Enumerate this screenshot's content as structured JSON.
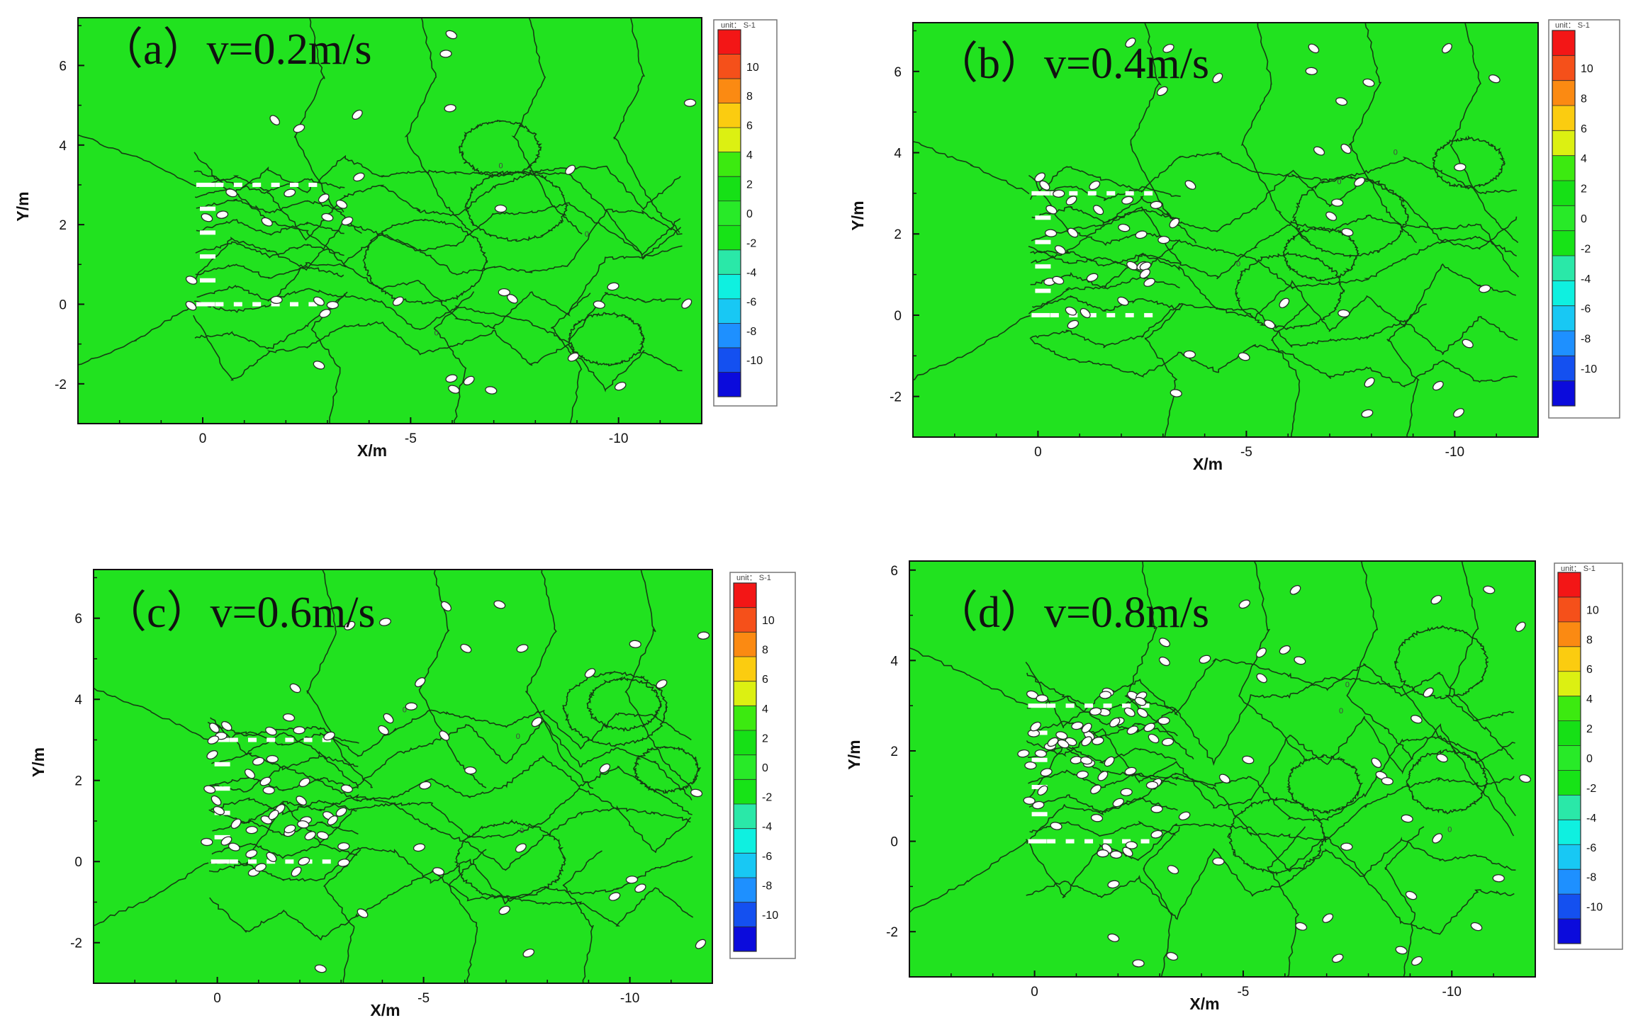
{
  "colors": {
    "field": "#21e21f",
    "contour": "#163d14",
    "marker_fill": "#ffffff",
    "marker_stroke": "#2a2a2a",
    "axis": "#111111",
    "colorbar": [
      "#0b0bdc",
      "#1450f0",
      "#1e90ff",
      "#18c8f4",
      "#0ff0e0",
      "#2ae8a8",
      "#17e317",
      "#28ea28",
      "#16e016",
      "#3cea10",
      "#dcf012",
      "#fbcc10",
      "#fb8a12",
      "#f5501a",
      "#f31616"
    ]
  },
  "chart_data": [
    {
      "id": "a",
      "type": "contour",
      "title": "（a）v=0.2m/s",
      "xlabel": "X/m",
      "ylabel": "Y/m",
      "xlim": [
        3,
        -12
      ],
      "ylim": [
        -3,
        7.2
      ],
      "xticks": [
        0,
        -5,
        -10
      ],
      "xtick_labels": [
        "0",
        "-5",
        "-10"
      ],
      "yticks": [
        -2,
        0,
        2,
        4,
        6
      ],
      "ytick_labels": [
        "-2",
        "0",
        "2",
        "4",
        "6"
      ],
      "colorbar": {
        "unit": "unit： S-1",
        "levels": [
          10,
          8,
          6,
          4,
          2,
          0,
          -2,
          -4,
          -6,
          -8,
          -10
        ],
        "labels": [
          "10",
          "8",
          "6",
          "4",
          "2",
          "0",
          "-2",
          "-4",
          "-6",
          "-8",
          "-10"
        ]
      },
      "contour_value": "0"
    },
    {
      "id": "b",
      "type": "contour",
      "title": "（b）v=0.4m/s",
      "xlabel": "X/m",
      "ylabel": "Y/m",
      "xlim": [
        3,
        -12
      ],
      "ylim": [
        -3,
        7.2
      ],
      "xticks": [
        0,
        -5,
        -10
      ],
      "xtick_labels": [
        "0",
        "-5",
        "-10"
      ],
      "yticks": [
        -2,
        0,
        2,
        4,
        6
      ],
      "ytick_labels": [
        "-2",
        "0",
        "2",
        "4",
        "6"
      ],
      "colorbar": {
        "unit": "unit： S-1",
        "levels": [
          10,
          8,
          6,
          4,
          2,
          0,
          -2,
          -4,
          -6,
          -8,
          -10
        ],
        "labels": [
          "10",
          "8",
          "6",
          "4",
          "2",
          "0",
          "-2",
          "-4",
          "-6",
          "-8",
          "-10"
        ]
      },
      "contour_value": "0"
    },
    {
      "id": "c",
      "type": "contour",
      "title": "（c）v=0.6m/s",
      "xlabel": "X/m",
      "ylabel": "Y/m",
      "xlim": [
        3,
        -12
      ],
      "ylim": [
        -3,
        7.2
      ],
      "xticks": [
        0,
        -5,
        -10
      ],
      "xtick_labels": [
        "0",
        "-5",
        "-10"
      ],
      "yticks": [
        -2,
        0,
        2,
        4,
        6
      ],
      "ytick_labels": [
        "-2",
        "0",
        "2",
        "4",
        "6"
      ],
      "colorbar": {
        "unit": "unit： S-1",
        "levels": [
          10,
          8,
          6,
          4,
          2,
          0,
          -2,
          -4,
          -6,
          -8,
          -10
        ],
        "labels": [
          "10",
          "8",
          "6",
          "4",
          "2",
          "0",
          "-2",
          "-4",
          "-6",
          "-8",
          "-10"
        ]
      },
      "contour_value": "0"
    },
    {
      "id": "d",
      "type": "contour",
      "title": "（d）v=0.8m/s",
      "xlabel": "X/m",
      "ylabel": "Y/m",
      "xlim": [
        3,
        -12
      ],
      "ylim": [
        -3,
        6.2
      ],
      "xticks": [
        0,
        -5,
        -10
      ],
      "xtick_labels": [
        "0",
        "-5",
        "-10"
      ],
      "yticks": [
        -2,
        0,
        2,
        4,
        6
      ],
      "ytick_labels": [
        "-2",
        "0",
        "2",
        "4",
        "6"
      ],
      "colorbar": {
        "unit": "unit： S-1",
        "levels": [
          10,
          8,
          6,
          4,
          2,
          0,
          -2,
          -4,
          -6,
          -8,
          -10
        ],
        "labels": [
          "10",
          "8",
          "6",
          "4",
          "2",
          "0",
          "-2",
          "-4",
          "-6",
          "-8",
          "-10"
        ]
      },
      "contour_value": "0"
    }
  ]
}
